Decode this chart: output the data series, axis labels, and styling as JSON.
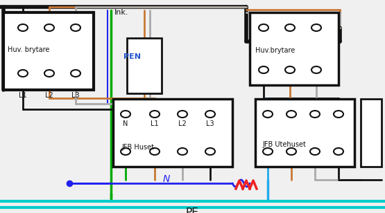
{
  "bg": "#f0f0f0",
  "bk": "#111111",
  "br": "#c87835",
  "gr": "#aaaaaa",
  "gn": "#00aa00",
  "bl": "#2222ee",
  "cy": "#22aaee",
  "rd": "#ee2222",
  "tl": "#00cccc",
  "pen_col": "#2255cc",
  "white": "#ffffff",
  "labels": {
    "ink": "Ink.",
    "pen": "PEN",
    "huv_left": "Huv. brytare",
    "huv_right": "Huv.brytare",
    "jfb_huset": "JFB Huset",
    "jfb_utehuset": "JFB Utehuset",
    "l1": "L1",
    "l2": "L2",
    "l3": "L3",
    "N_term": "N",
    "N_wire": "N",
    "PE": "PE"
  },
  "layout": {
    "lb": [
      5,
      18,
      130,
      112
    ],
    "mb": [
      183,
      55,
      50,
      80
    ],
    "rb": [
      360,
      18,
      128,
      105
    ],
    "jh": [
      163,
      143,
      172,
      98
    ],
    "ju": [
      368,
      143,
      143,
      98
    ],
    "sb": [
      520,
      143,
      30,
      98
    ]
  }
}
